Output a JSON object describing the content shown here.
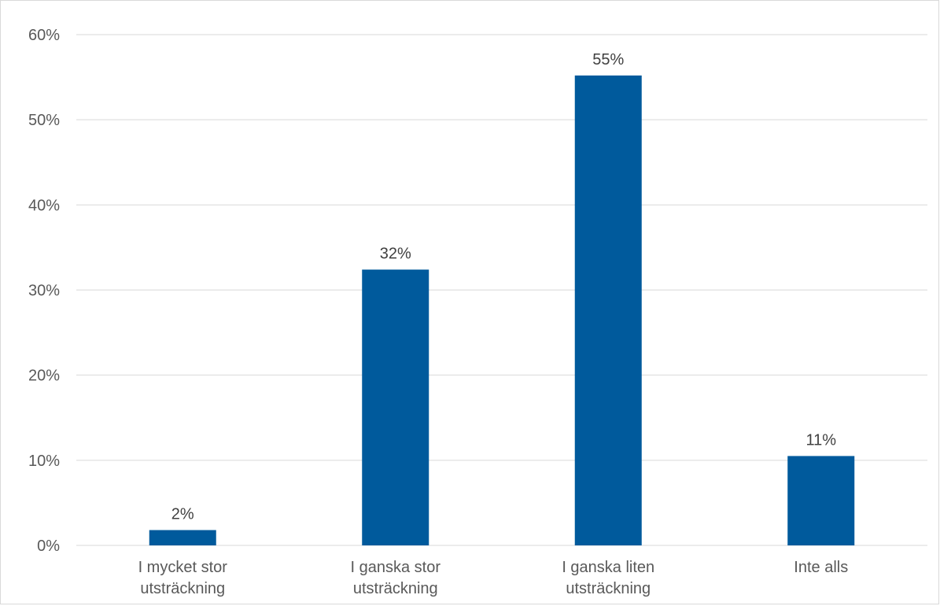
{
  "chart_data": {
    "type": "bar",
    "categories": [
      [
        "I mycket stor",
        "utsträckning"
      ],
      [
        "I ganska stor",
        "utsträckning"
      ],
      [
        "I ganska liten",
        "utsträckning"
      ],
      [
        "Inte alls"
      ]
    ],
    "values": [
      1.8,
      32.4,
      55.2,
      10.5
    ],
    "data_labels": [
      "2%",
      "32%",
      "55%",
      "11%"
    ],
    "y_ticks": [
      0,
      10,
      20,
      30,
      40,
      50,
      60
    ],
    "y_tick_labels": [
      "0%",
      "10%",
      "20%",
      "30%",
      "40%",
      "50%",
      "60%"
    ],
    "ylim": [
      0,
      60
    ],
    "grid": true,
    "legend": "none",
    "bar_color": "#005a9c",
    "gridline_color": "#d9d9d9"
  }
}
